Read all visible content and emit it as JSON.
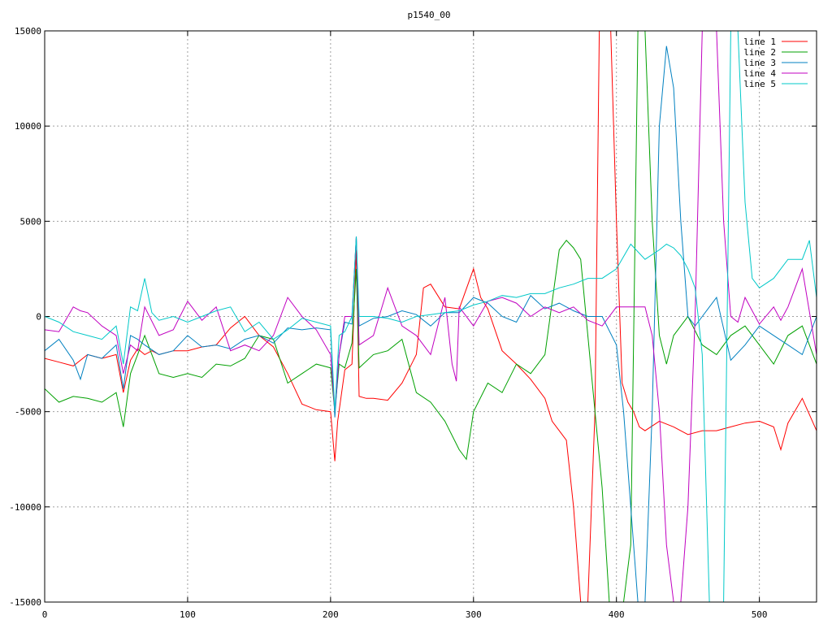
{
  "chart_data": {
    "type": "line",
    "title": "p1540_00",
    "xlabel": "",
    "ylabel": "",
    "xlim": [
      0,
      540
    ],
    "ylim": [
      -15000,
      15000
    ],
    "xticks": [
      0,
      100,
      200,
      300,
      400,
      500
    ],
    "yticks": [
      -15000,
      -10000,
      -5000,
      0,
      5000,
      10000,
      15000
    ],
    "grid": true,
    "legend_position": "top-right",
    "series": [
      {
        "name": "line 1",
        "color": "#ff0000",
        "x": [
          0,
          10,
          20,
          30,
          40,
          50,
          55,
          60,
          65,
          70,
          75,
          80,
          90,
          100,
          110,
          120,
          130,
          140,
          150,
          160,
          170,
          180,
          190,
          200,
          203,
          205,
          210,
          215,
          218,
          220,
          225,
          230,
          240,
          250,
          260,
          265,
          270,
          280,
          290,
          300,
          305,
          310,
          320,
          330,
          340,
          350,
          355,
          360,
          365,
          370,
          375,
          380,
          385,
          388,
          392,
          396,
          400,
          404,
          408,
          412,
          416,
          420,
          430,
          440,
          450,
          460,
          470,
          480,
          490,
          500,
          510,
          515,
          520,
          530,
          540
        ],
        "y": [
          -2200,
          -2400,
          -2600,
          -2000,
          -2200,
          -2000,
          -4000,
          -2300,
          -1700,
          -2000,
          -1800,
          -2000,
          -1800,
          -1800,
          -1600,
          -1500,
          -600,
          0,
          -1000,
          -1600,
          -3000,
          -4600,
          -4900,
          -5000,
          -7600,
          -5500,
          -2800,
          -2500,
          3500,
          -4200,
          -4300,
          -4300,
          -4400,
          -3500,
          -2000,
          1500,
          1700,
          500,
          400,
          2500,
          1000,
          400,
          -1800,
          -2500,
          -3300,
          -4300,
          -5500,
          -6000,
          -6500,
          -10000,
          -15000,
          -15000,
          -5000,
          15000,
          15000,
          15000,
          5000,
          -3500,
          -4500,
          -5000,
          -5800,
          -6000,
          -5500,
          -5800,
          -6200,
          -6000,
          -6000,
          -5800,
          -5600,
          -5500,
          -5800,
          -7000,
          -5600,
          -4300,
          -6000
        ]
      },
      {
        "name": "line 2",
        "color": "#00a000",
        "x": [
          0,
          10,
          20,
          30,
          40,
          50,
          55,
          60,
          65,
          70,
          80,
          90,
          100,
          110,
          120,
          130,
          140,
          150,
          160,
          170,
          180,
          190,
          200,
          203,
          206,
          210,
          215,
          218,
          220,
          230,
          240,
          250,
          260,
          270,
          280,
          290,
          295,
          300,
          310,
          320,
          330,
          340,
          350,
          360,
          365,
          370,
          375,
          380,
          385,
          390,
          395,
          400,
          405,
          410,
          415,
          420,
          425,
          430,
          435,
          440,
          445,
          450,
          460,
          470,
          480,
          490,
          500,
          510,
          520,
          530,
          540
        ],
        "y": [
          -3800,
          -4500,
          -4200,
          -4300,
          -4500,
          -4000,
          -5800,
          -3000,
          -2000,
          -1000,
          -3000,
          -3200,
          -3000,
          -3200,
          -2500,
          -2600,
          -2200,
          -1000,
          -1200,
          -3500,
          -3000,
          -2500,
          -2700,
          -5000,
          -2500,
          -2700,
          -1400,
          2500,
          -2700,
          -2000,
          -1800,
          -1200,
          -4000,
          -4500,
          -5500,
          -7000,
          -7500,
          -5000,
          -3500,
          -4000,
          -2500,
          -3000,
          -2000,
          3500,
          4000,
          3600,
          3000,
          -1000,
          -5000,
          -9000,
          -15000,
          -15000,
          -15000,
          -12000,
          15000,
          15000,
          5000,
          -1000,
          -2500,
          -1000,
          -500,
          0,
          -1500,
          -2000,
          -1000,
          -500,
          -1500,
          -2500,
          -1000,
          -500,
          -2500
        ]
      },
      {
        "name": "line 3",
        "color": "#0080c0",
        "x": [
          0,
          10,
          20,
          25,
          30,
          40,
          50,
          55,
          60,
          65,
          70,
          80,
          90,
          100,
          110,
          120,
          130,
          140,
          150,
          160,
          170,
          180,
          190,
          200,
          203,
          206,
          210,
          215,
          218,
          220,
          230,
          240,
          250,
          260,
          270,
          280,
          290,
          300,
          310,
          320,
          330,
          340,
          350,
          360,
          370,
          380,
          390,
          400,
          405,
          410,
          415,
          420,
          425,
          430,
          435,
          440,
          445,
          450,
          455,
          460,
          470,
          480,
          490,
          500,
          510,
          520,
          530,
          540
        ],
        "y": [
          -1800,
          -1200,
          -2300,
          -3300,
          -2000,
          -2200,
          -1500,
          -3800,
          -1000,
          -1200,
          -1500,
          -2000,
          -1800,
          -1000,
          -1600,
          -1500,
          -1700,
          -1200,
          -1000,
          -1400,
          -600,
          -700,
          -600,
          -700,
          -5300,
          -2000,
          -300,
          -400,
          4200,
          -500,
          -100,
          0,
          300,
          100,
          -500,
          200,
          200,
          1000,
          700,
          0,
          -300,
          1100,
          400,
          700,
          300,
          0,
          0,
          -1500,
          -5000,
          -10000,
          -15000,
          -15000,
          -5000,
          10000,
          14200,
          12000,
          5000,
          0,
          -500,
          0,
          1000,
          -2300,
          -1500,
          -500,
          -1000,
          -1500,
          -2000,
          0
        ]
      },
      {
        "name": "line 4",
        "color": "#c000c0",
        "x": [
          0,
          10,
          20,
          25,
          30,
          40,
          50,
          55,
          60,
          65,
          70,
          80,
          90,
          100,
          110,
          120,
          130,
          140,
          150,
          160,
          170,
          180,
          190,
          200,
          203,
          206,
          210,
          215,
          218,
          220,
          230,
          240,
          250,
          260,
          270,
          280,
          285,
          288,
          290,
          300,
          310,
          320,
          330,
          340,
          350,
          360,
          370,
          380,
          390,
          400,
          410,
          420,
          425,
          430,
          435,
          440,
          445,
          450,
          455,
          460,
          465,
          470,
          475,
          480,
          485,
          490,
          500,
          510,
          515,
          520,
          530,
          540
        ],
        "y": [
          -700,
          -800,
          500,
          300,
          200,
          -500,
          -1000,
          -3000,
          -1500,
          -1800,
          500,
          -1000,
          -700,
          800,
          -200,
          500,
          -1800,
          -1500,
          -1800,
          -1000,
          1000,
          0,
          -700,
          -2000,
          -5000,
          -2000,
          0,
          0,
          4200,
          -1500,
          -1000,
          1500,
          -500,
          -1000,
          -2000,
          1000,
          -2500,
          -3400,
          500,
          -500,
          800,
          1000,
          700,
          0,
          500,
          200,
          500,
          -200,
          -500,
          500,
          500,
          500,
          -1000,
          -5000,
          -12000,
          -15000,
          -15000,
          -10000,
          0,
          15000,
          15000,
          15000,
          5000,
          0,
          -300,
          1000,
          -400,
          500,
          -200,
          500,
          2500,
          -2000
        ]
      },
      {
        "name": "line 5",
        "color": "#00c8c8",
        "x": [
          0,
          10,
          20,
          30,
          40,
          50,
          55,
          60,
          65,
          70,
          75,
          80,
          90,
          100,
          110,
          120,
          130,
          140,
          150,
          160,
          170,
          180,
          190,
          200,
          203,
          206,
          210,
          215,
          218,
          220,
          230,
          240,
          250,
          260,
          270,
          280,
          290,
          300,
          310,
          320,
          330,
          340,
          350,
          360,
          370,
          380,
          390,
          400,
          410,
          420,
          430,
          435,
          440,
          445,
          450,
          455,
          460,
          465,
          470,
          475,
          480,
          485,
          490,
          495,
          500,
          510,
          520,
          530,
          535,
          540
        ],
        "y": [
          0,
          -300,
          -800,
          -1000,
          -1200,
          -500,
          -2500,
          500,
          300,
          2000,
          200,
          -200,
          0,
          -300,
          0,
          300,
          500,
          -800,
          -300,
          -1200,
          -700,
          -100,
          -300,
          -500,
          -5000,
          -1000,
          -800,
          0,
          4200,
          0,
          0,
          -100,
          -300,
          0,
          100,
          200,
          300,
          600,
          800,
          1100,
          1000,
          1200,
          1200,
          1500,
          1700,
          2000,
          2000,
          2500,
          3800,
          3000,
          3500,
          3800,
          3600,
          3200,
          2500,
          1500,
          -2000,
          -15000,
          -15000,
          -15000,
          15000,
          15000,
          6000,
          2000,
          1500,
          2000,
          3000,
          3000,
          4000,
          1000
        ]
      }
    ]
  }
}
